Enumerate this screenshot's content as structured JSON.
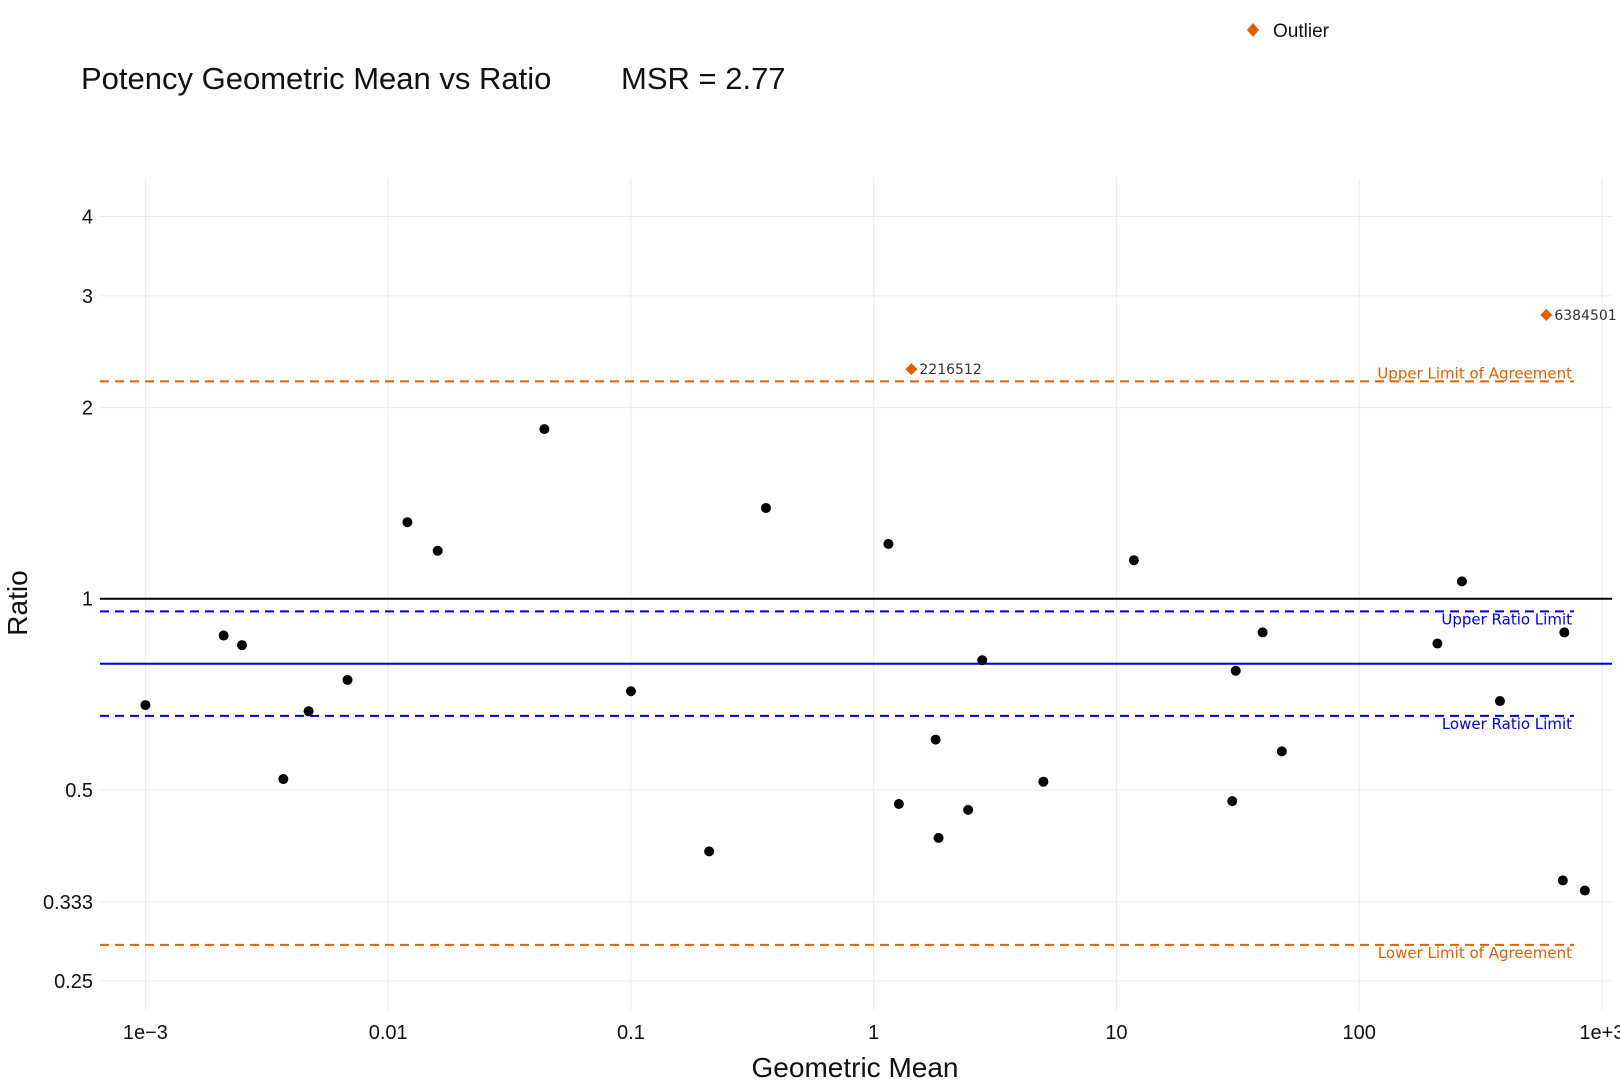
{
  "chart_data": {
    "type": "scatter",
    "title": "Potency Geometric Mean vs Ratio",
    "subtitle": "MSR = 2.77",
    "xlabel": "Geometric Mean",
    "ylabel": "Ratio",
    "x_scale": "log",
    "y_scale": "log",
    "xlim": [
      0.00065,
      1100
    ],
    "ylim": [
      0.225,
      4.6
    ],
    "x_ticks": [
      {
        "value": 0.001,
        "label": "1e−3"
      },
      {
        "value": 0.01,
        "label": "0.01"
      },
      {
        "value": 0.1,
        "label": "0.1"
      },
      {
        "value": 1,
        "label": "1"
      },
      {
        "value": 10,
        "label": "10"
      },
      {
        "value": 100,
        "label": "100"
      },
      {
        "value": 1000,
        "label": "1e+3"
      }
    ],
    "y_ticks": [
      {
        "value": 0.25,
        "label": "0.25"
      },
      {
        "value": 0.333,
        "label": "0.333"
      },
      {
        "value": 0.5,
        "label": "0.5"
      },
      {
        "value": 1,
        "label": "1"
      },
      {
        "value": 2,
        "label": "2"
      },
      {
        "value": 3,
        "label": "3"
      },
      {
        "value": 4,
        "label": "4"
      }
    ],
    "grid": true,
    "legend": {
      "position": "top-right",
      "entries": [
        {
          "name": "Outlier",
          "color": "#e06000",
          "marker": "diamond"
        }
      ]
    },
    "reference_lines": [
      {
        "name": "ratio-one",
        "y": 1.0,
        "style": "solid",
        "color": "#000000",
        "label": ""
      },
      {
        "name": "mean-ratio",
        "y": 0.79,
        "style": "solid",
        "color": "#0000dd",
        "label": ""
      },
      {
        "name": "upper-ratio-limit",
        "y": 0.955,
        "style": "dashed",
        "color": "#0000dd",
        "label": "Upper Ratio Limit"
      },
      {
        "name": "lower-ratio-limit",
        "y": 0.654,
        "style": "dashed",
        "color": "#0000dd",
        "label": "Lower Ratio Limit"
      },
      {
        "name": "upper-limit-of-agreement",
        "y": 2.2,
        "style": "dashed",
        "color": "#e06000",
        "label": "Upper Limit of Agreement"
      },
      {
        "name": "lower-limit-of-agreement",
        "y": 0.285,
        "style": "dashed",
        "color": "#e06000",
        "label": "Lower Limit of Agreement"
      }
    ],
    "series": [
      {
        "color": "#000000",
        "marker": "circle",
        "points": [
          {
            "x": 0.001,
            "y": 0.68
          },
          {
            "x": 0.0021,
            "y": 0.875
          },
          {
            "x": 0.0025,
            "y": 0.845
          },
          {
            "x": 0.0037,
            "y": 0.52
          },
          {
            "x": 0.0047,
            "y": 0.665
          },
          {
            "x": 0.0068,
            "y": 0.745
          },
          {
            "x": 0.012,
            "y": 1.32
          },
          {
            "x": 0.016,
            "y": 1.19
          },
          {
            "x": 0.044,
            "y": 1.85
          },
          {
            "x": 0.1,
            "y": 0.715
          },
          {
            "x": 0.21,
            "y": 0.4
          },
          {
            "x": 0.36,
            "y": 1.39
          },
          {
            "x": 1.15,
            "y": 1.22
          },
          {
            "x": 1.27,
            "y": 0.475
          },
          {
            "x": 1.8,
            "y": 0.6
          },
          {
            "x": 1.85,
            "y": 0.42
          },
          {
            "x": 2.45,
            "y": 0.465
          },
          {
            "x": 2.8,
            "y": 0.8
          },
          {
            "x": 5.0,
            "y": 0.515
          },
          {
            "x": 11.8,
            "y": 1.15
          },
          {
            "x": 30,
            "y": 0.48
          },
          {
            "x": 31,
            "y": 0.77
          },
          {
            "x": 40,
            "y": 0.885
          },
          {
            "x": 48,
            "y": 0.575
          },
          {
            "x": 210,
            "y": 0.85
          },
          {
            "x": 265,
            "y": 1.065
          },
          {
            "x": 380,
            "y": 0.69
          },
          {
            "x": 690,
            "y": 0.36
          },
          {
            "x": 700,
            "y": 0.885
          },
          {
            "x": 850,
            "y": 0.347
          }
        ]
      },
      {
        "name": "Outlier",
        "color": "#e06000",
        "marker": "diamond",
        "points": [
          {
            "x": 1.43,
            "y": 2.3,
            "label": "2216512"
          },
          {
            "x": 590,
            "y": 2.8,
            "label": "6384501"
          }
        ]
      }
    ]
  }
}
